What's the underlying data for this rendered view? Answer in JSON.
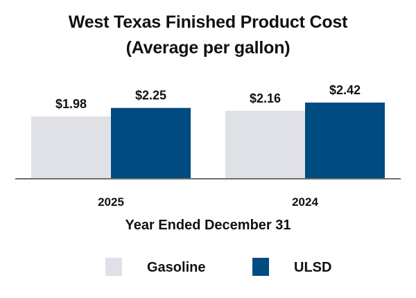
{
  "chart_data": {
    "type": "bar",
    "title": "West Texas Finished Product Cost",
    "subtitle": "(Average per gallon)",
    "xlabel": "Year Ended December 31",
    "ylabel": "",
    "categories": [
      "2025",
      "2024"
    ],
    "series": [
      {
        "name": "Gasoline",
        "values": [
          1.98,
          2.16
        ],
        "labels": [
          "$1.98",
          "$2.16"
        ],
        "color": "#E0E1E6"
      },
      {
        "name": "ULSD",
        "values": [
          2.25,
          2.42
        ],
        "labels": [
          "$2.25",
          "$2.42"
        ],
        "color": "#004B80"
      }
    ],
    "ylim": [
      0,
      2.5
    ],
    "grid": false,
    "legend": "bottom"
  },
  "colors": {
    "axis": "#6E6E6E",
    "text": "#111111"
  }
}
